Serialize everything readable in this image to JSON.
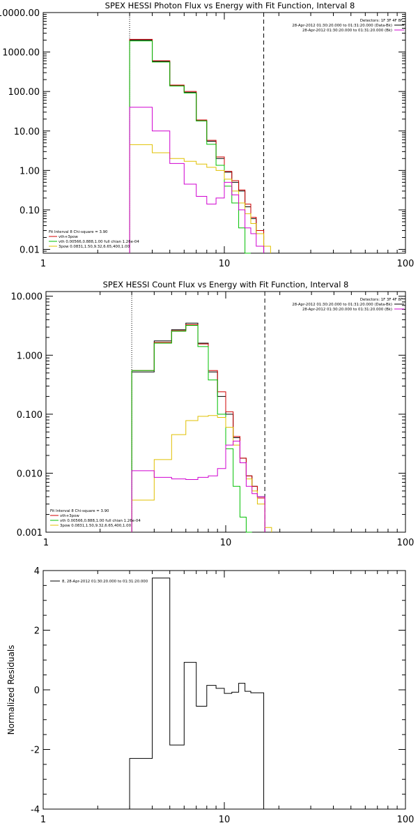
{
  "chart_data": [
    {
      "type": "line",
      "title": "SPEX HESSI Photon Flux vs Energy with Fit Function, Interval 8",
      "xscale": "log",
      "yscale": "log",
      "xlim": [
        1,
        100
      ],
      "ylim": [
        0.008,
        10000
      ],
      "xtick_labels": [
        {
          "v": 1,
          "t": "1"
        },
        {
          "v": 10,
          "t": "10"
        },
        {
          "v": 100,
          "t": "100"
        }
      ],
      "ytick_labels": [
        {
          "v": 10000,
          "t": "10000.00"
        },
        {
          "v": 1000,
          "t": "1000.00"
        },
        {
          "v": 100,
          "t": "100.00"
        },
        {
          "v": 10,
          "t": "10.00"
        },
        {
          "v": 1,
          "t": "1.00"
        },
        {
          "v": 0.1,
          "t": "0.10"
        },
        {
          "v": 0.01,
          "t": "0.01"
        }
      ],
      "vlines": [
        {
          "x": 3.0,
          "style": "dotted"
        },
        {
          "x": 16.5,
          "style": "dashed"
        }
      ],
      "legend_top_right": {
        "detectors": "Detectors: 1F 3F 4F 8F",
        "entries": [
          {
            "text": "28-Apr-2012 01:30:20.000 to 01:31:20.000 (Data-Bk)",
            "color": "#000000"
          },
          {
            "text": "28-Apr-2012 01:30:20.000 to 01:31:20.000 (Bk)",
            "color": "#d000d0"
          }
        ]
      },
      "legend_bottom_left": {
        "header": "Fit Interval 8   Chi-square = 3.90",
        "entries": [
          {
            "text": "vth+3pow",
            "color": "#d00000"
          },
          {
            "text": "vth 0.00566,0.888,1.00  full chian 1.26e-04",
            "color": "#00c000"
          },
          {
            "text": "3pow 0.0831,1.50,9.32,6.65,400,1.00",
            "color": "#e0c000"
          }
        ]
      },
      "edges": [
        3.0,
        4.0,
        5.0,
        6.0,
        7.0,
        8.0,
        9.0,
        10.0,
        11.0,
        12.0,
        13.0,
        14.0,
        15.0,
        16.5,
        18.0
      ],
      "series": [
        {
          "name": "Data-Bk",
          "color": "#000000",
          "values": [
            2000,
            580,
            140,
            95,
            18,
            5.5,
            2.0,
            0.9,
            0.5,
            0.3,
            0.12,
            0.06,
            0.025,
            null
          ]
        },
        {
          "name": "vth+3pow",
          "color": "#d00000",
          "values": [
            2100,
            600,
            145,
            100,
            19,
            5.8,
            2.2,
            0.95,
            0.55,
            0.32,
            0.14,
            0.065,
            0.03,
            null
          ]
        },
        {
          "name": "vth",
          "color": "#00c000",
          "values": [
            1900,
            560,
            138,
            92,
            18,
            4.6,
            1.35,
            0.4,
            0.15,
            0.035,
            0.007,
            null,
            null,
            null
          ]
        },
        {
          "name": "3pow",
          "color": "#e0c000",
          "values": [
            4.5,
            2.8,
            2.0,
            1.7,
            1.45,
            1.2,
            1.0,
            0.6,
            0.3,
            0.15,
            0.08,
            0.045,
            0.025,
            0.012
          ]
        },
        {
          "name": "Bk",
          "color": "#d000d0",
          "values": [
            40,
            10,
            1.5,
            0.45,
            0.22,
            0.14,
            0.2,
            0.5,
            0.24,
            0.1,
            0.035,
            0.025,
            0.012,
            null
          ]
        }
      ]
    },
    {
      "type": "line",
      "title": "SPEX HESSI Count Flux vs Energy with Fit Function, Interval 8",
      "xscale": "log",
      "yscale": "log",
      "xlim": [
        1,
        100
      ],
      "ylim": [
        0.001,
        12
      ],
      "xtick_labels": [
        {
          "v": 1,
          "t": "1"
        },
        {
          "v": 10,
          "t": "10"
        },
        {
          "v": 100,
          "t": "100"
        }
      ],
      "ytick_labels": [
        {
          "v": 10,
          "t": "10.000"
        },
        {
          "v": 1,
          "t": "1.000"
        },
        {
          "v": 0.1,
          "t": "0.100"
        },
        {
          "v": 0.01,
          "t": "0.010"
        },
        {
          "v": 0.001,
          "t": "0.001"
        }
      ],
      "vlines": [
        {
          "x": 3.0,
          "style": "dotted"
        },
        {
          "x": 16.5,
          "style": "dashed"
        }
      ],
      "legend_top_right": {
        "detectors": "Detectors: 1F 3F 4F 8F",
        "entries": [
          {
            "text": "28-Apr-2012 01:30:20.000 to 01:31:20.000 (Data-Bk)",
            "color": "#000000"
          },
          {
            "text": "28-Apr-2012 01:30:20.000 to 01:31:20.000 (Bk)",
            "color": "#d000d0"
          }
        ]
      },
      "legend_bottom_left": {
        "header": "Fit Interval 8   Chi-square = 3.90",
        "entries": [
          {
            "text": "vth+3pow",
            "color": "#d00000"
          },
          {
            "text": "vth 0.00566,0.888,1.00  full chian 1.26e-04",
            "color": "#00c000"
          },
          {
            "text": "3pow 0.0831,1.50,9.32,6.65,400,1.00",
            "color": "#e0c000"
          }
        ]
      },
      "edges": [
        3.0,
        4.0,
        5.0,
        6.0,
        7.0,
        8.0,
        9.0,
        10.0,
        11.0,
        12.0,
        13.0,
        14.0,
        15.0,
        16.5,
        18.0
      ],
      "series": [
        {
          "name": "Data-Bk",
          "color": "#000000",
          "values": [
            0.52,
            1.75,
            2.7,
            3.5,
            1.6,
            0.52,
            0.2,
            0.1,
            0.04,
            0.018,
            0.009,
            0.006,
            0.004,
            null
          ]
        },
        {
          "name": "vth+3pow",
          "color": "#d00000",
          "values": [
            0.55,
            1.65,
            2.6,
            3.3,
            1.55,
            0.55,
            0.24,
            0.11,
            0.042,
            0.018,
            0.009,
            0.006,
            0.0038,
            null
          ]
        },
        {
          "name": "vth",
          "color": "#00c000",
          "values": [
            0.55,
            1.6,
            2.55,
            3.2,
            1.4,
            0.38,
            0.1,
            0.026,
            0.006,
            0.0018,
            0.0006,
            null,
            null,
            null
          ]
        },
        {
          "name": "3pow",
          "color": "#e0c000",
          "values": [
            0.0035,
            0.017,
            0.045,
            0.078,
            0.092,
            0.095,
            0.088,
            0.06,
            0.03,
            0.015,
            0.008,
            0.005,
            0.003,
            0.0012
          ]
        },
        {
          "name": "Bk",
          "color": "#d000d0",
          "values": [
            0.011,
            0.0085,
            0.008,
            0.0078,
            0.0085,
            0.009,
            0.012,
            0.03,
            0.035,
            0.015,
            0.006,
            0.0045,
            0.004,
            null
          ]
        }
      ]
    },
    {
      "type": "line",
      "title": "",
      "xscale": "log",
      "yscale": "linear",
      "xlim": [
        1,
        100
      ],
      "ylim": [
        -4,
        4
      ],
      "ylabel": "Normalized Residuals",
      "xtick_labels": [
        {
          "v": 1,
          "t": "1"
        },
        {
          "v": 10,
          "t": "10"
        },
        {
          "v": 100,
          "t": "100"
        }
      ],
      "ytick_labels": [
        {
          "v": 4,
          "t": "4"
        },
        {
          "v": 2,
          "t": "2"
        },
        {
          "v": 0,
          "t": "0"
        },
        {
          "v": -2,
          "t": "-2"
        },
        {
          "v": -4,
          "t": "-4"
        }
      ],
      "legend_top_left": {
        "text": "8, 28-Apr-2012 01:30:20.000 to 01:31:20.000"
      },
      "edges": [
        3.0,
        4.0,
        5.0,
        6.0,
        7.0,
        8.0,
        9.0,
        10.0,
        11.0,
        12.0,
        13.0,
        14.0,
        15.0,
        16.5
      ],
      "series": [
        {
          "name": "8, 28-Apr-2012 01:30:20.000 to 01:31:20.000",
          "color": "#000000",
          "values": [
            -2.3,
            3.75,
            -1.85,
            0.92,
            -0.55,
            0.15,
            0.05,
            -0.12,
            -0.08,
            0.22,
            -0.05,
            -0.1,
            -0.1
          ]
        }
      ]
    }
  ]
}
